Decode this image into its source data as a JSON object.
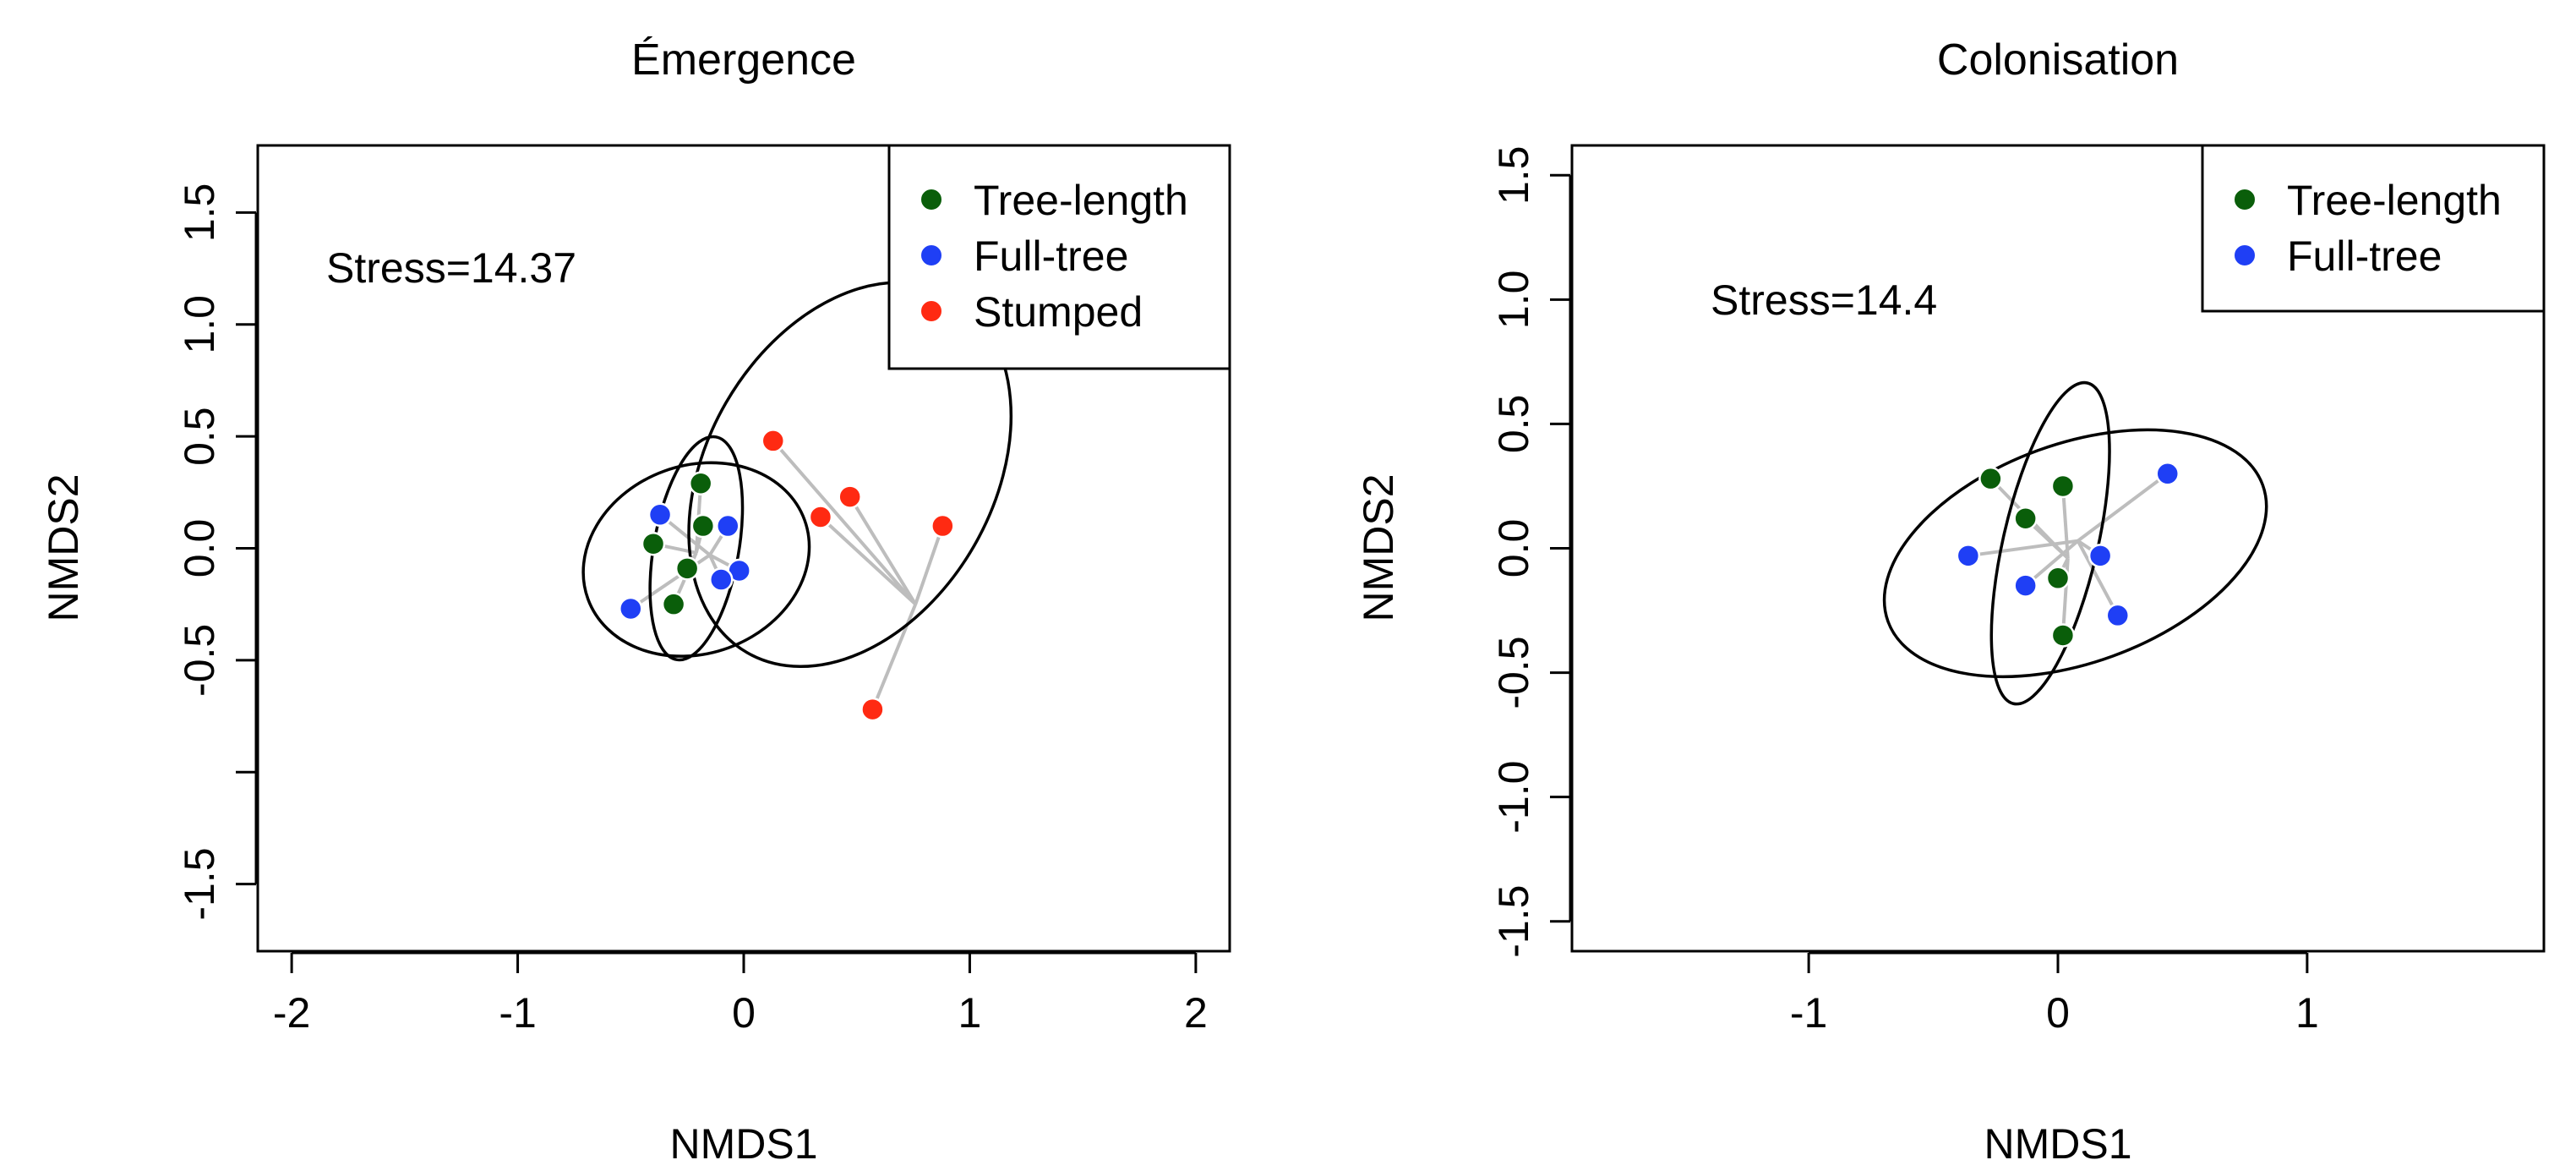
{
  "colors": {
    "tree_length": "#0a5e0a",
    "full_tree": "#1f3ff5",
    "stumped": "#ff2a12",
    "spider": "#bdbdbd",
    "ellipse": "#000000"
  },
  "chart_data": [
    {
      "type": "scatter",
      "title": "Émergence",
      "xlabel": "NMDS1",
      "ylabel": "NMDS2",
      "xlim": [
        -2.15,
        2.15
      ],
      "ylim": [
        -1.8,
        1.8
      ],
      "xticks": [
        -2,
        -1,
        0,
        1,
        2
      ],
      "xtick_labels": [
        "-2",
        "-1",
        "0",
        "1",
        "2"
      ],
      "yticks": [
        -1.5,
        -1.0,
        -0.5,
        0.0,
        0.5,
        1.0,
        1.5
      ],
      "ytick_labels": [
        "-1.5",
        "",
        "-0.5",
        "0.0",
        "0.5",
        "1.0",
        "1.5"
      ],
      "stress_label": "Stress=14.37",
      "legend_position": "top-right",
      "legend": [
        "Tree-length",
        "Full-tree",
        "Stumped"
      ],
      "series": [
        {
          "name": "Tree-length",
          "color": "#0a5e0a",
          "centroid": [
            -0.21,
            -0.02
          ],
          "points": [
            [
              -0.19,
              0.29
            ],
            [
              -0.18,
              0.1
            ],
            [
              -0.4,
              0.02
            ],
            [
              -0.25,
              -0.09
            ],
            [
              -0.31,
              -0.25
            ]
          ],
          "ellipse": {
            "cx": -0.21,
            "cy": 0.0,
            "rx": 0.5,
            "ry": 0.19,
            "angle_deg": 80
          }
        },
        {
          "name": "Full-tree",
          "color": "#1f3ff5",
          "centroid": [
            -0.15,
            -0.03
          ],
          "points": [
            [
              -0.37,
              0.15
            ],
            [
              -0.07,
              0.1
            ],
            [
              -0.02,
              -0.1
            ],
            [
              -0.1,
              -0.14
            ],
            [
              -0.5,
              -0.27
            ]
          ],
          "ellipse": {
            "cx": -0.21,
            "cy": -0.05,
            "rx": 0.51,
            "ry": 0.42,
            "angle_deg": 20
          }
        },
        {
          "name": "Stumped",
          "color": "#ff2a12",
          "centroid": [
            0.76,
            -0.25
          ],
          "points": [
            [
              0.13,
              0.48
            ],
            [
              0.47,
              0.23
            ],
            [
              0.34,
              0.14
            ],
            [
              0.88,
              0.1
            ],
            [
              0.57,
              -0.72
            ]
          ],
          "ellipse": {
            "cx": 0.47,
            "cy": 0.33,
            "rx": 0.91,
            "ry": 0.64,
            "angle_deg": 60
          }
        }
      ]
    },
    {
      "type": "scatter",
      "title": "Colonisation",
      "xlabel": "NMDS1",
      "ylabel": "NMDS2",
      "xlim": [
        -1.95,
        1.95
      ],
      "ylim": [
        -1.62,
        1.62
      ],
      "xticks": [
        -1,
        0,
        1
      ],
      "xtick_labels": [
        "-1",
        "0",
        "1"
      ],
      "yticks": [
        -1.5,
        -1.0,
        -0.5,
        0.0,
        0.5,
        1.0,
        1.5
      ],
      "ytick_labels": [
        "-1.5",
        "-1.0",
        "-0.5",
        "0.0",
        "0.5",
        "1.0",
        "1.5"
      ],
      "stress_label": "Stress=14.4",
      "legend_position": "top-right",
      "legend": [
        "Tree-length",
        "Full-tree"
      ],
      "series": [
        {
          "name": "Tree-length",
          "color": "#0a5e0a",
          "centroid": [
            0.04,
            -0.04
          ],
          "points": [
            [
              -0.27,
              0.28
            ],
            [
              0.02,
              0.25
            ],
            [
              -0.13,
              0.12
            ],
            [
              0.0,
              -0.12
            ],
            [
              0.02,
              -0.35
            ]
          ],
          "ellipse": {
            "cx": -0.03,
            "cy": 0.02,
            "rx": 0.66,
            "ry": 0.19,
            "angle_deg": 77
          }
        },
        {
          "name": "Full-tree",
          "color": "#1f3ff5",
          "centroid": [
            0.08,
            0.03
          ],
          "points": [
            [
              0.44,
              0.3
            ],
            [
              -0.36,
              -0.03
            ],
            [
              0.17,
              -0.03
            ],
            [
              -0.13,
              -0.15
            ],
            [
              0.24,
              -0.27
            ]
          ],
          "ellipse": {
            "cx": 0.07,
            "cy": -0.02,
            "rx": 0.8,
            "ry": 0.44,
            "angle_deg": 20
          }
        }
      ]
    }
  ]
}
